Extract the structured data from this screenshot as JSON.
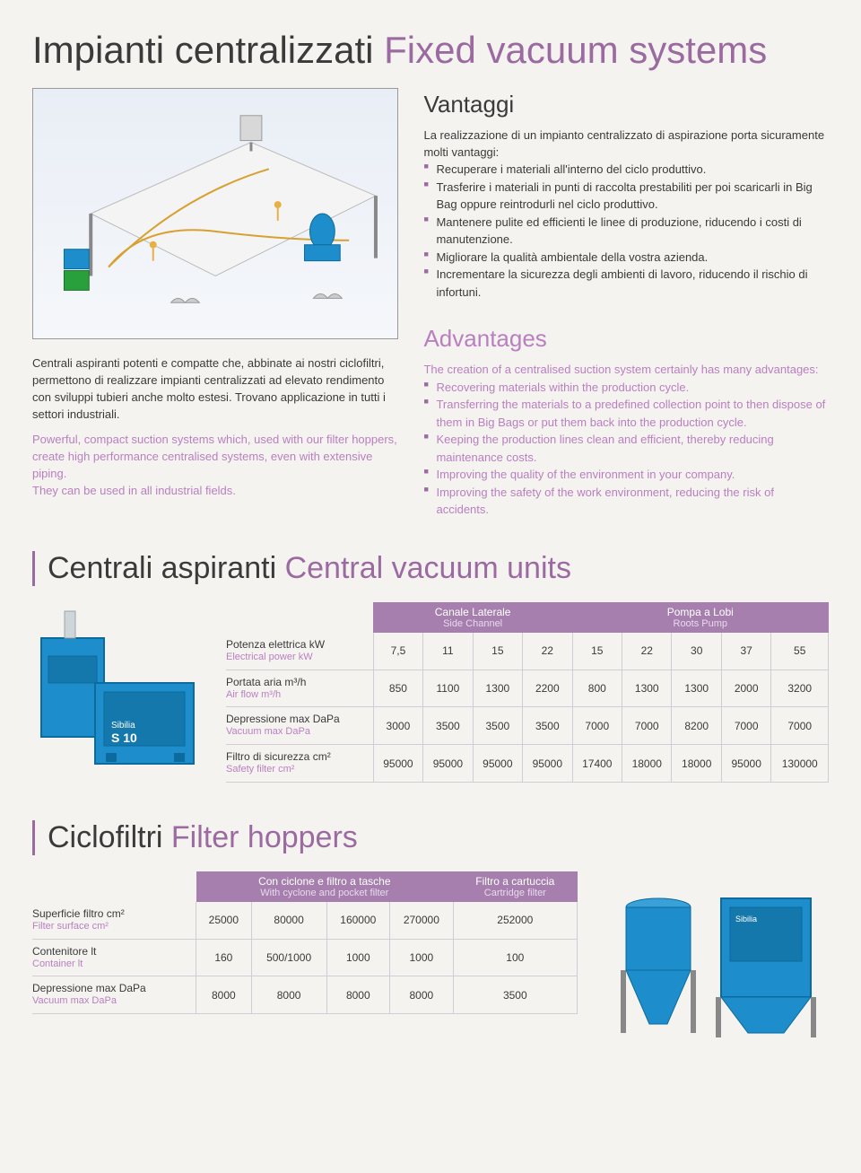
{
  "page": {
    "title_it": "Impianti centralizzati",
    "title_en": "Fixed vacuum systems"
  },
  "intro": {
    "it": "Centrali aspiranti potenti e compatte che, abbinate ai nostri ciclofiltri, permettono di realizzare impianti centralizzati ad elevato rendimento con sviluppi tubieri anche molto estesi. Trovano applicazione in tutti i settori industriali.",
    "en": "Powerful, compact suction systems which, used with our filter hoppers, create high performance centralised systems, even with extensive piping.",
    "en2": "They can be used in all industrial fields."
  },
  "vantaggi": {
    "heading": "Vantaggi",
    "lead": "La realizzazione di un impianto centralizzato di aspirazione porta sicuramente molti vantaggi:",
    "items": [
      "Recuperare i materiali all'interno del ciclo produttivo.",
      "Trasferire i materiali in punti di raccolta prestabiliti per poi scaricarli in Big Bag oppure reintrodurli nel ciclo produttivo.",
      "Mantenere pulite ed efficienti le linee di produzione, riducendo i costi di manutenzione.",
      "Migliorare la qualità ambientale della vostra azienda.",
      "Incrementare la sicurezza degli ambienti di lavoro, riducendo il rischio di infortuni."
    ]
  },
  "advantages": {
    "heading": "Advantages",
    "lead": "The creation of a centralised suction system certainly has many advantages:",
    "items": [
      "Recovering materials within the production cycle.",
      "Transferring the materials to a predefined collection point to then dispose of them in Big Bags or put them back into the production cycle.",
      "Keeping the production lines clean and efficient, thereby reducing maintenance costs.",
      "Improving the quality of the environment in your company.",
      "Improving the safety of the work environment, reducing the risk of accidents."
    ]
  },
  "central": {
    "title_it": "Centrali aspiranti",
    "title_en": "Central vacuum units",
    "group1": {
      "it": "Canale Laterale",
      "en": "Side Channel"
    },
    "group2": {
      "it": "Pompa a Lobi",
      "en": "Roots Pump"
    },
    "rows": [
      {
        "it": "Potenza elettrica kW",
        "en": "Electrical power kW",
        "vals": [
          "7,5",
          "11",
          "15",
          "22",
          "15",
          "22",
          "30",
          "37",
          "55"
        ]
      },
      {
        "it": "Portata aria m³/h",
        "en": "Air flow m³/h",
        "vals": [
          "850",
          "1100",
          "1300",
          "2200",
          "800",
          "1300",
          "1300",
          "2000",
          "3200"
        ]
      },
      {
        "it": "Depressione max DaPa",
        "en": "Vacuum max DaPa",
        "vals": [
          "3000",
          "3500",
          "3500",
          "3500",
          "7000",
          "7000",
          "8200",
          "7000",
          "7000"
        ]
      },
      {
        "it": "Filtro di sicurezza cm²",
        "en": "Safety filter cm²",
        "vals": [
          "95000",
          "95000",
          "95000",
          "95000",
          "17400",
          "18000",
          "18000",
          "95000",
          "130000"
        ]
      }
    ]
  },
  "ciclo": {
    "title_it": "Ciclofiltri",
    "title_en": "Filter hoppers",
    "group1": {
      "it": "Con ciclone e filtro a tasche",
      "en": "With cyclone and pocket filter"
    },
    "group2": {
      "it": "Filtro a cartuccia",
      "en": "Cartridge filter"
    },
    "rows": [
      {
        "it": "Superficie filtro cm²",
        "en": "Filter surface cm²",
        "vals": [
          "25000",
          "80000",
          "160000",
          "270000",
          "252000"
        ]
      },
      {
        "it": "Contenitore lt",
        "en": "Container lt",
        "vals": [
          "160",
          "500/1000",
          "1000",
          "1000",
          "100"
        ]
      },
      {
        "it": "Depressione max DaPa",
        "en": "Vacuum max DaPa",
        "vals": [
          "8000",
          "8000",
          "8000",
          "8000",
          "3500"
        ]
      }
    ]
  },
  "colors": {
    "accent": "#9a6aa0",
    "pink_text": "#b97fbf",
    "table_header": "#a67fae",
    "blue_product": "#1d8ecb",
    "bg": "#f5f3f0"
  }
}
